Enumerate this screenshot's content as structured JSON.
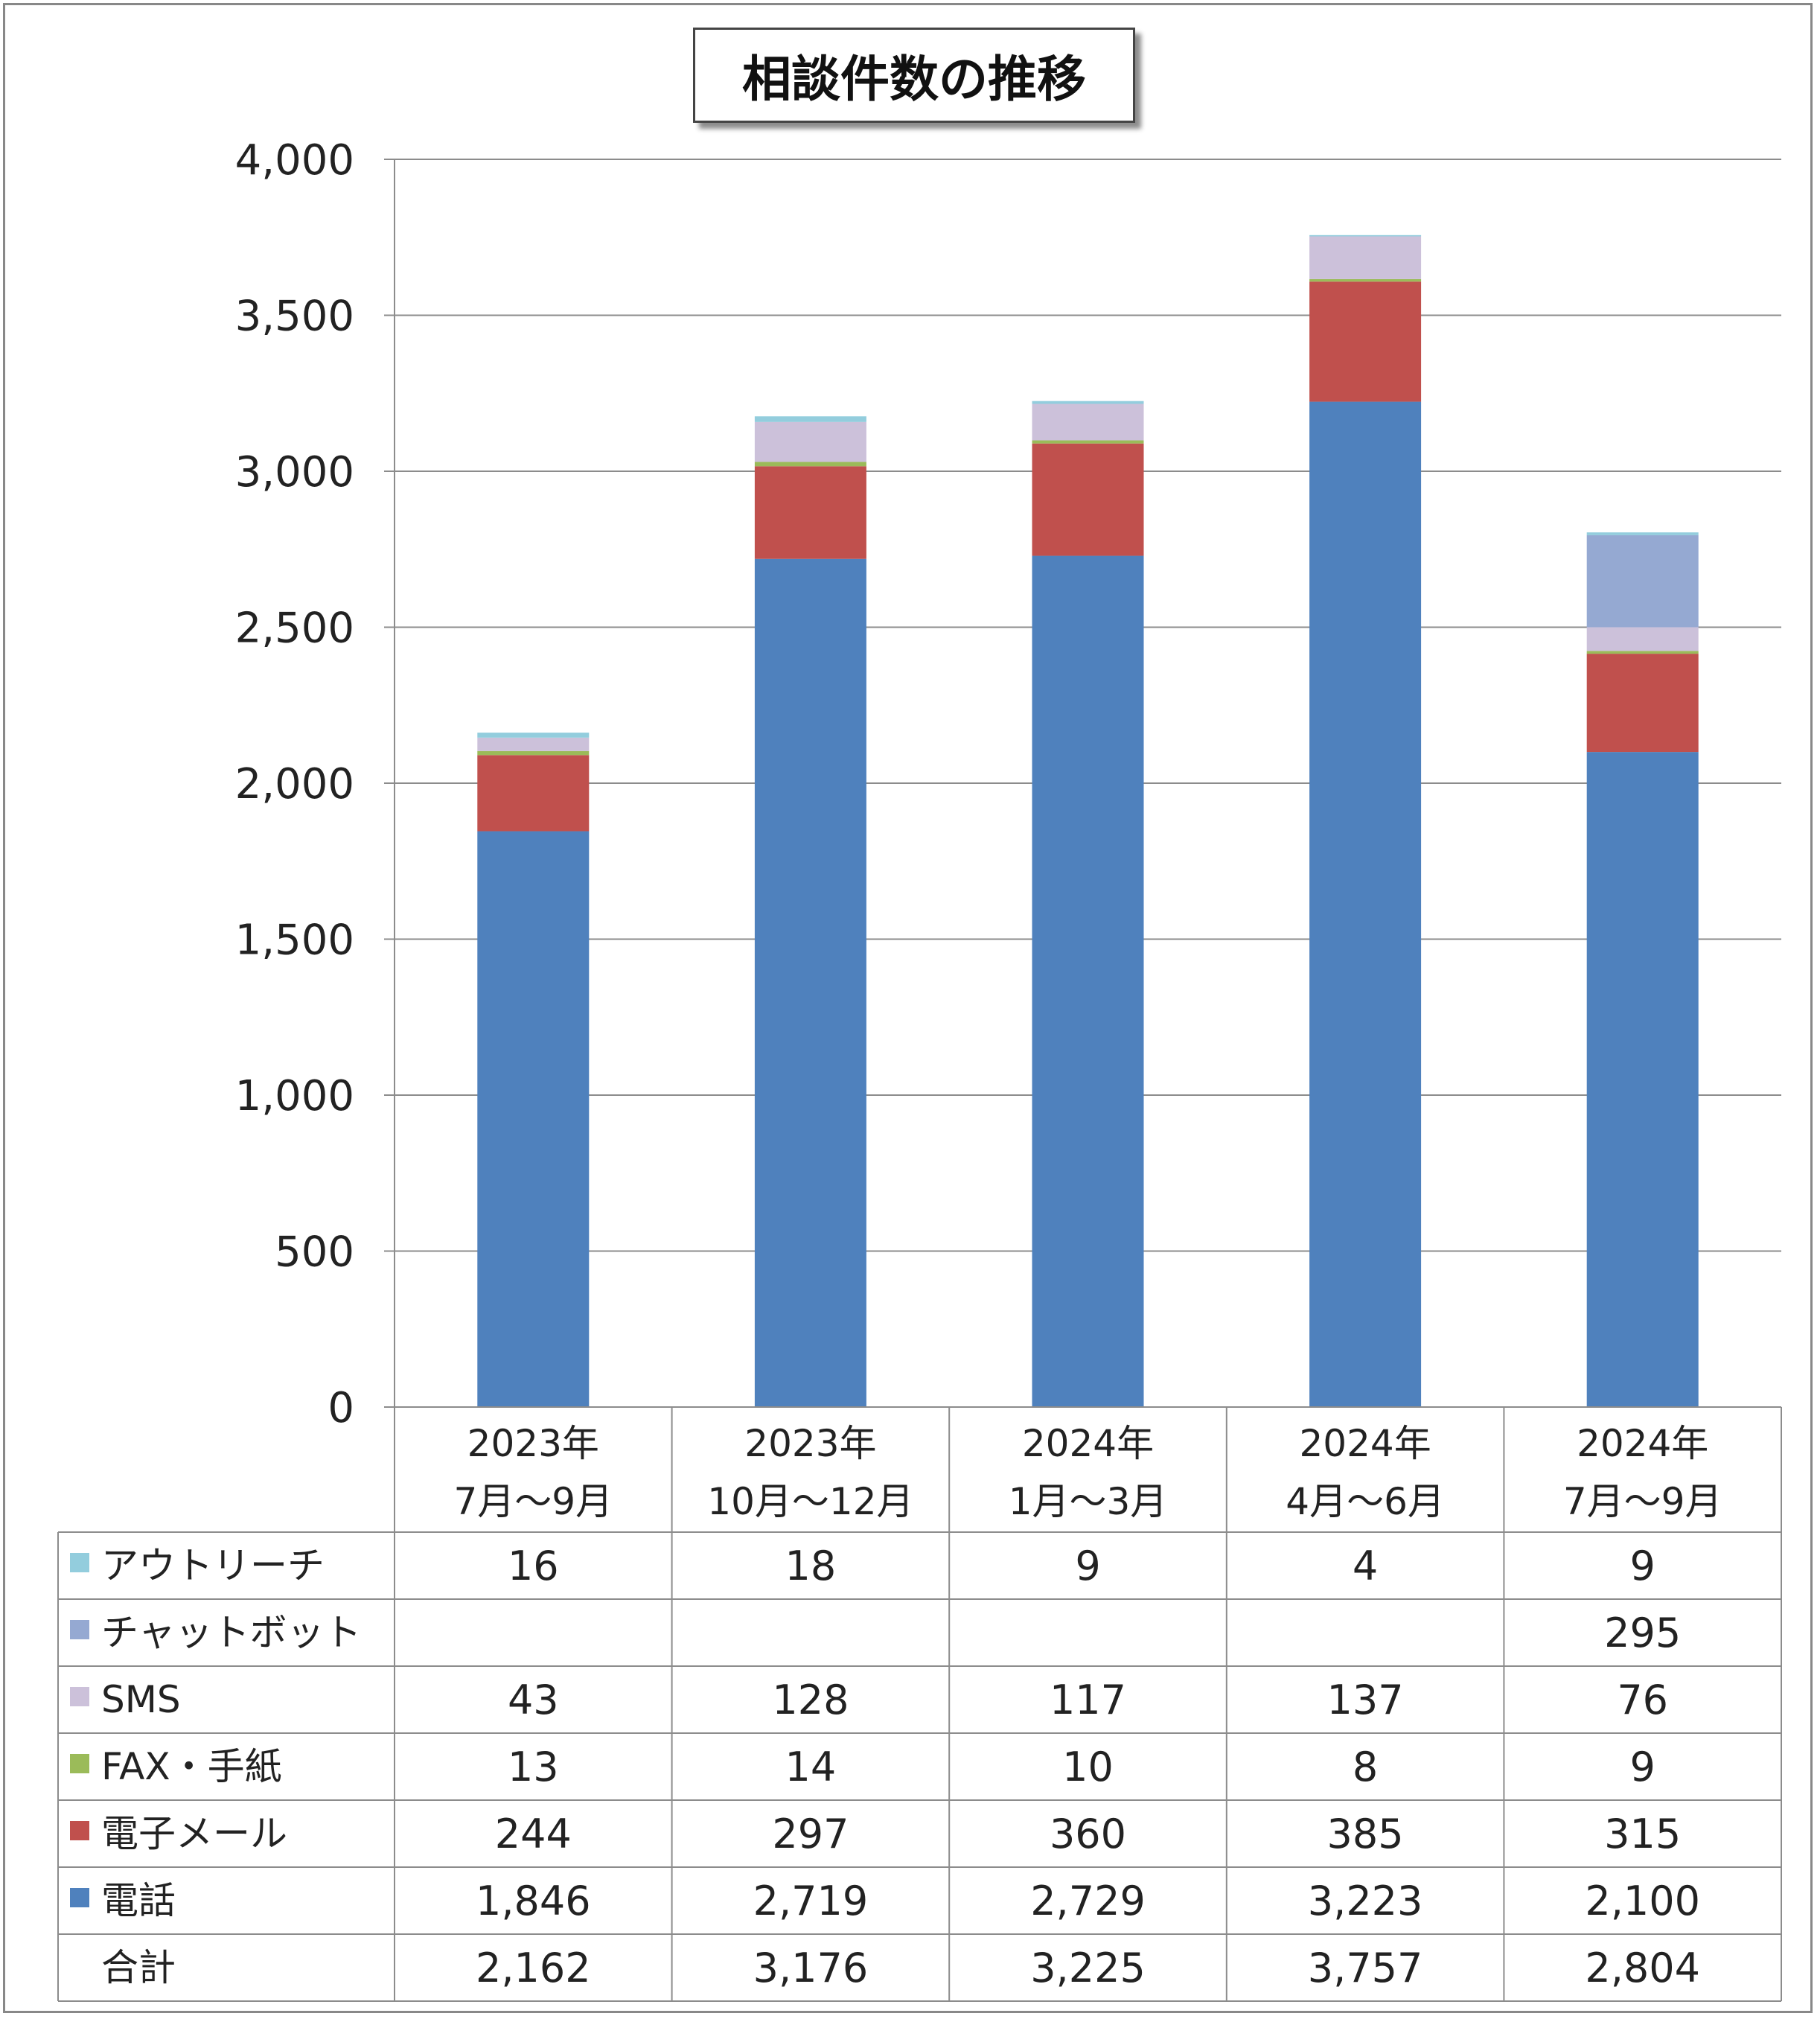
{
  "chart_data": {
    "type": "bar",
    "stacked": true,
    "title": "相談件数の推移",
    "categories": [
      [
        "2023年",
        "7月～9月"
      ],
      [
        "2023年",
        "10月～12月"
      ],
      [
        "2024年",
        "1月～3月"
      ],
      [
        "2024年",
        "4月～6月"
      ],
      [
        "2024年",
        "7月～9月"
      ]
    ],
    "ylim": [
      0,
      4000
    ],
    "yticks": [
      "0",
      "500",
      "1,000",
      "1,500",
      "2,000",
      "2,500",
      "3,000",
      "3,500",
      "4,000"
    ],
    "grid": true,
    "legend": "data-table-below",
    "series": [
      {
        "name": "電話",
        "color": "#4F81BD",
        "values": [
          1846,
          2719,
          2729,
          3223,
          2100
        ],
        "labels": [
          "1,846",
          "2,719",
          "2,729",
          "3,223",
          "2,100"
        ]
      },
      {
        "name": "電子メール",
        "color": "#C0504D",
        "values": [
          244,
          297,
          360,
          385,
          315
        ],
        "labels": [
          "244",
          "297",
          "360",
          "385",
          "315"
        ]
      },
      {
        "name": "FAX・手紙",
        "color": "#9BBB59",
        "values": [
          13,
          14,
          10,
          8,
          9
        ],
        "labels": [
          "13",
          "14",
          "10",
          "8",
          "9"
        ]
      },
      {
        "name": "SMS",
        "color": "#CCC1DA",
        "values": [
          43,
          128,
          117,
          137,
          76
        ],
        "labels": [
          "43",
          "128",
          "117",
          "137",
          "76"
        ]
      },
      {
        "name": "チャットボット",
        "color": "#95A9D2",
        "values": [
          null,
          null,
          null,
          null,
          295
        ],
        "labels": [
          "",
          "",
          "",
          "",
          "295"
        ]
      },
      {
        "name": "アウトリーチ",
        "color": "#93CDDD",
        "values": [
          16,
          18,
          9,
          4,
          9
        ],
        "labels": [
          "16",
          "18",
          "9",
          "4",
          "9"
        ]
      }
    ],
    "total": {
      "name": "合計",
      "labels": [
        "2,162",
        "3,176",
        "3,225",
        "3,757",
        "2,804"
      ]
    },
    "table_row_order": [
      "アウトリーチ",
      "チャットボット",
      "SMS",
      "FAX・手紙",
      "電子メール",
      "電話",
      "合計"
    ]
  }
}
